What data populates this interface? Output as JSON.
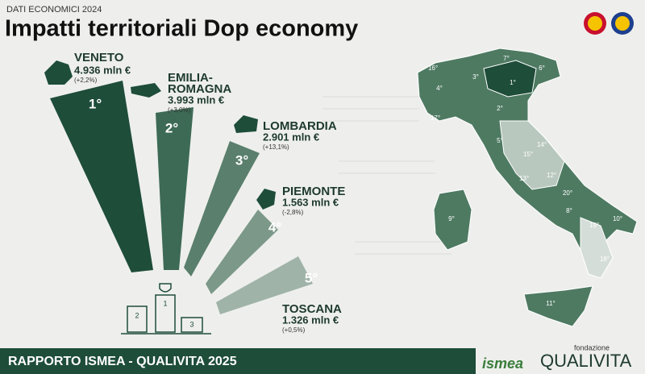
{
  "header": {
    "kicker": "DATI ECONOMICI 2024",
    "title": "Impatti territoriali Dop economy"
  },
  "ranking": [
    {
      "rank": "1°",
      "region": [
        "VENETO"
      ],
      "value": "4.936 mln €",
      "change": "(+2,2%)"
    },
    {
      "rank": "2°",
      "region": [
        "EMILIA-",
        "ROMAGNA"
      ],
      "value": "3.993 mln €",
      "change": "(+3,0%)"
    },
    {
      "rank": "3°",
      "region": [
        "LOMBARDIA"
      ],
      "value": "2.901 mln €",
      "change": "(+13,1%)"
    },
    {
      "rank": "4°",
      "region": [
        "PIEMONTE"
      ],
      "value": "1.563 mln €",
      "change": "(-2,8%)"
    },
    {
      "rank": "5°",
      "region": [
        "TOSCANA"
      ],
      "value": "1.326 mln €",
      "change": "(+0,5%)"
    }
  ],
  "podium": [
    "1",
    "2",
    "3"
  ],
  "map_labels": [
    "16°",
    "7°",
    "6°",
    "4°",
    "3°",
    "1°",
    "2°",
    "17°",
    "5°",
    "14°",
    "15°",
    "12°",
    "13°",
    "20°",
    "8°",
    "9°",
    "19°",
    "10°",
    "18°",
    "11°"
  ],
  "footer": {
    "title": "RAPPORTO ISMEA - QUALIVITA 2025",
    "logo_ismea": "ismea",
    "logo_small": "fondazione",
    "logo_qualivita": "QUALIVITA"
  }
}
